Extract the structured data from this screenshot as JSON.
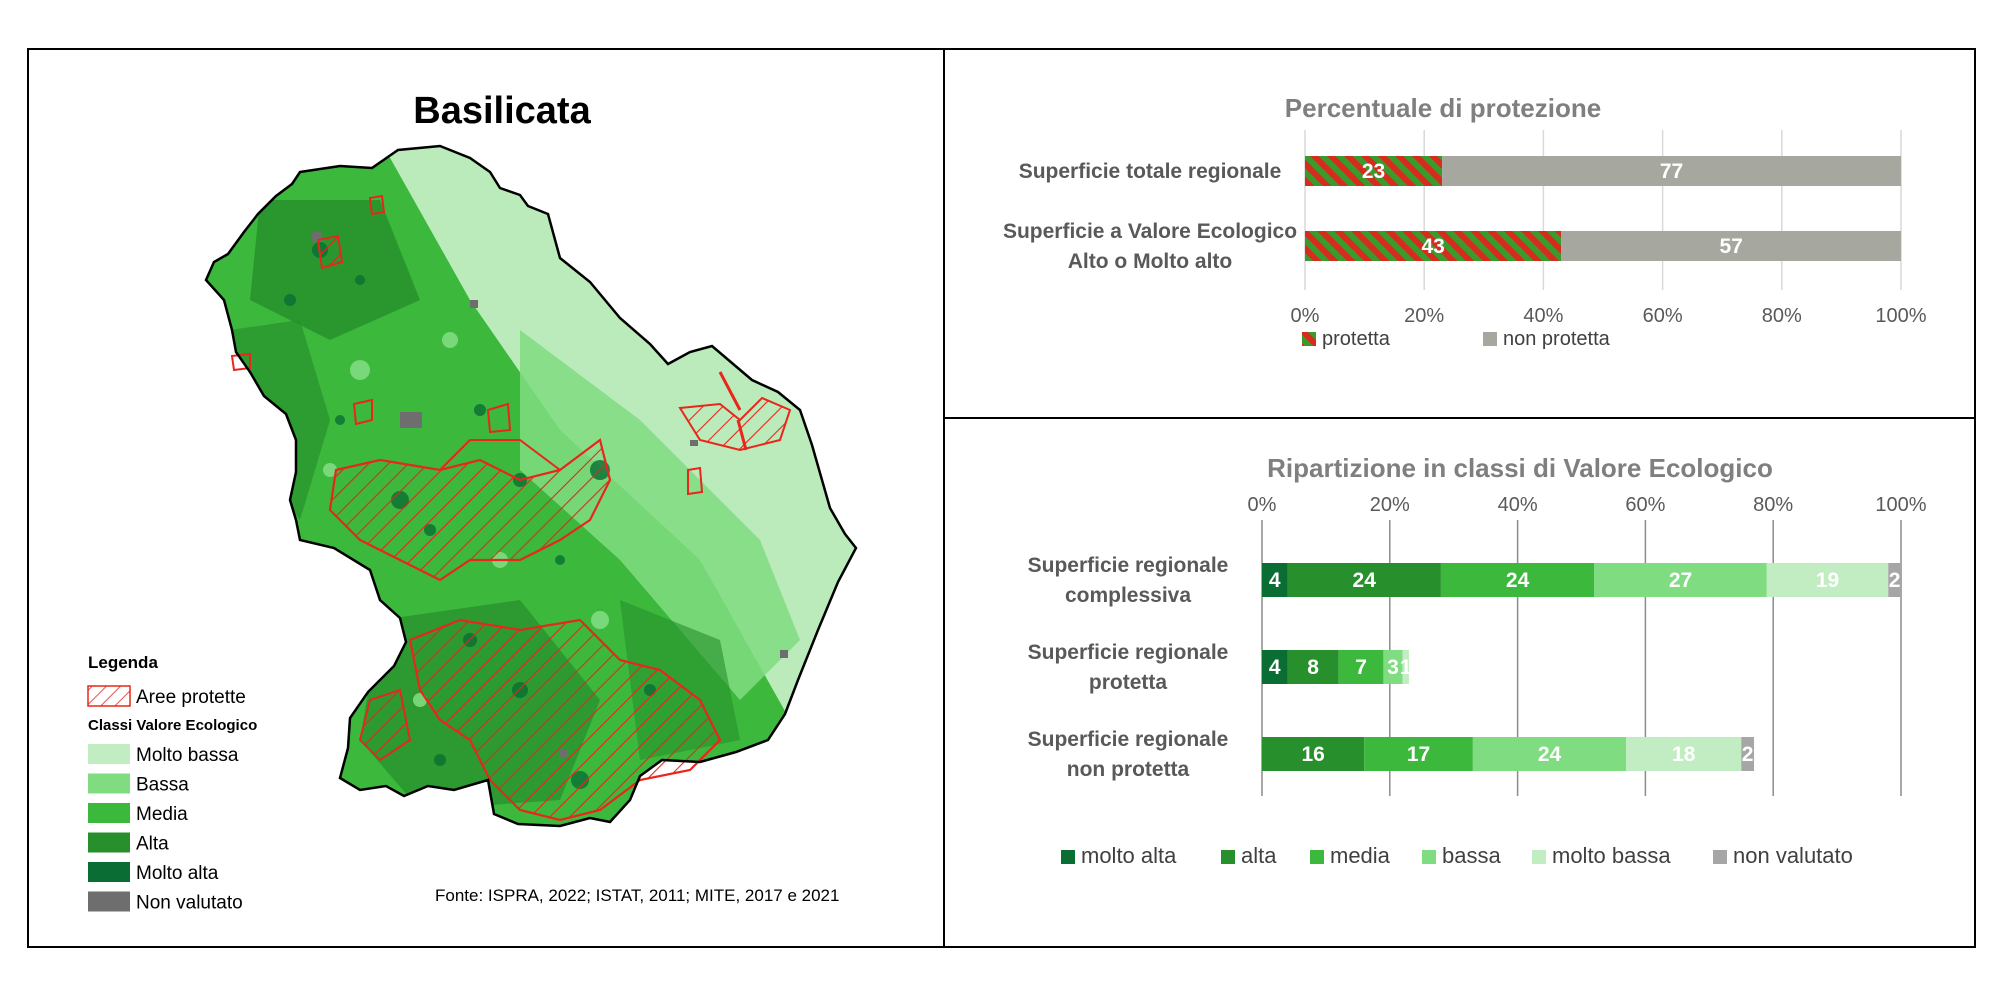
{
  "map_panel": {
    "title": "Basilicata",
    "legend": {
      "title": "Legenda",
      "protected_label": "Aree protette",
      "classes_title": "Classi Valore Ecologico",
      "classes": [
        {
          "label": "Molto bassa",
          "color": "#c2edc2"
        },
        {
          "label": "Bassa",
          "color": "#80dc80"
        },
        {
          "label": "Media",
          "color": "#3cb83c"
        },
        {
          "label": "Alta",
          "color": "#27902c"
        },
        {
          "label": "Molto alta",
          "color": "#0a6e34"
        },
        {
          "label": "Non valutato",
          "color": "#6e6e6e"
        }
      ]
    },
    "source": "Fonte: ISPRA, 2022; ISTAT, 2011; MITE, 2017 e 2021"
  },
  "chart_data": [
    {
      "type": "bar",
      "orientation": "horizontal-stacked-100",
      "title": "Percentuale di protezione",
      "categories": [
        "Superficie totale regionale",
        "Superficie a Valore Ecologico Alto o Molto alto"
      ],
      "series": [
        {
          "name": "protetta",
          "values": [
            23,
            43
          ],
          "color": "#d62b1f"
        },
        {
          "name": "non protetta",
          "values": [
            77,
            57
          ],
          "color": "#a6a79e"
        }
      ],
      "ticks": [
        "0%",
        "20%",
        "40%",
        "60%",
        "80%",
        "100%"
      ],
      "xlim": [
        0,
        100
      ],
      "grid": true,
      "legend_position": "bottom-left"
    },
    {
      "type": "bar",
      "orientation": "horizontal-stacked-100",
      "title": "Ripartizione in classi di Valore Ecologico",
      "categories": [
        "Superficie regionale complessiva",
        "Superficie regionale protetta",
        "Superficie regionale non protetta"
      ],
      "series": [
        {
          "name": "molto alta",
          "values": [
            4,
            4,
            0
          ],
          "color": "#0a6e34"
        },
        {
          "name": "alta",
          "values": [
            24,
            8,
            16
          ],
          "color": "#27902c"
        },
        {
          "name": "media",
          "values": [
            24,
            7,
            17
          ],
          "color": "#3cb83c"
        },
        {
          "name": "bassa",
          "values": [
            27,
            3,
            24
          ],
          "color": "#80dc80"
        },
        {
          "name": "molto bassa",
          "values": [
            19,
            1,
            18
          ],
          "color": "#c2edc2"
        },
        {
          "name": "non valutato",
          "values": [
            2,
            0,
            2
          ],
          "color": "#a6a6a6"
        }
      ],
      "ticks": [
        "0%",
        "20%",
        "40%",
        "60%",
        "80%",
        "100%"
      ],
      "xlim": [
        0,
        100
      ],
      "grid": true,
      "legend_position": "bottom"
    }
  ]
}
